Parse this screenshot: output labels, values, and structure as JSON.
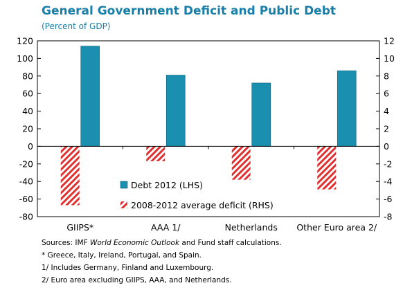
{
  "title": "General Government Deficit and Public Debt",
  "subtitle": "(Percent of GDP)",
  "chart_data": {
    "type": "bar",
    "categories": [
      "GIIPS*",
      "AAA 1/",
      "Netherlands",
      "Other Euro area 2/"
    ],
    "series": [
      {
        "name": "Debt 2012 (LHS)",
        "axis": "left",
        "color": "#1a8fb0",
        "values": [
          114,
          81,
          72,
          86
        ]
      },
      {
        "name": "2008-2012 average deficit (RHS)",
        "axis": "right",
        "color": "#e03030",
        "pattern": "diagonal-hatch",
        "values": [
          -6.7,
          -1.7,
          -3.8,
          -4.9
        ]
      }
    ],
    "y_left": {
      "min": -80,
      "max": 120,
      "ticks": [
        120,
        100,
        80,
        60,
        40,
        20,
        0,
        -20,
        -40,
        -60,
        -80
      ]
    },
    "y_right": {
      "min": -8,
      "max": 12,
      "ticks": [
        12,
        10,
        8,
        6,
        4,
        2,
        0,
        -2,
        -4,
        -6,
        -8
      ]
    },
    "grid": false,
    "legend_position": "center"
  },
  "notes": {
    "source_prefix": "Sources: IMF ",
    "source_italic": "World Economic Outlook",
    "source_suffix": " and Fund staff calculations.",
    "note_star": "* Greece, Italy, Ireland, Portugal, and Spain.",
    "note_1": "1/ Includes Germany, Finland and Luxembourg.",
    "note_2": "2/ Euro area excluding GIIPS, AAA, and Netherlands."
  }
}
